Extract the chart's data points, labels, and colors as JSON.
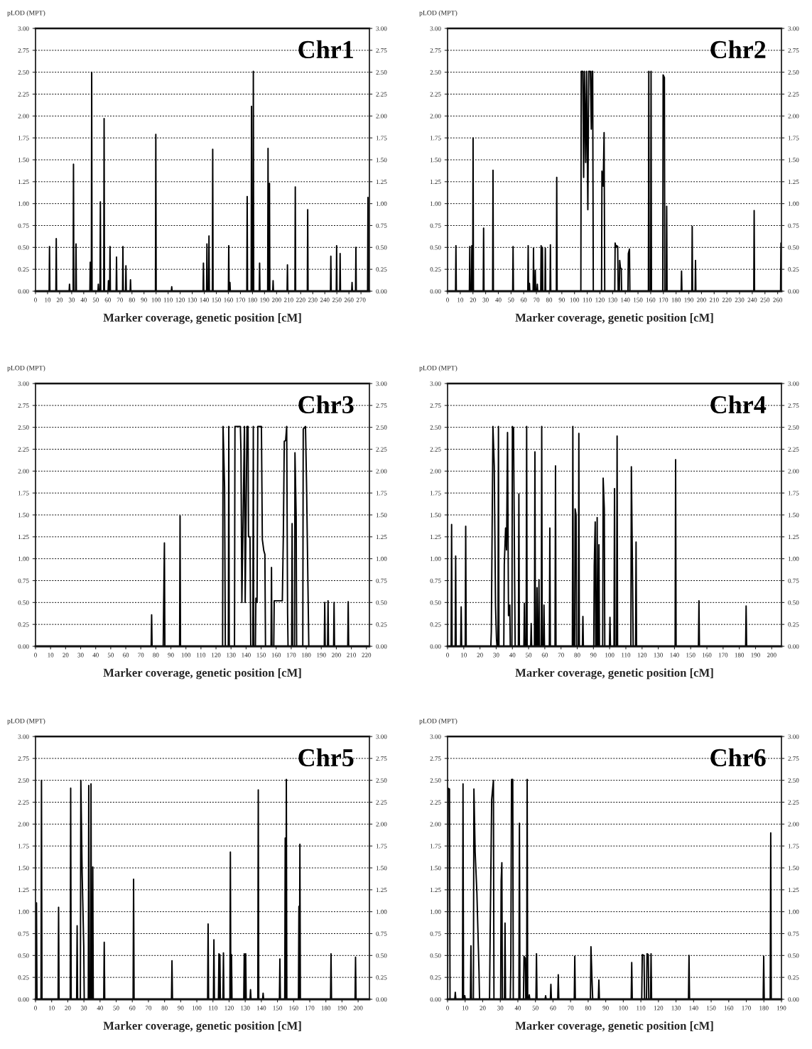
{
  "chart_data": [
    {
      "type": "line",
      "title": "Chr1",
      "ylabel": "pLOD (MPT)",
      "xlabel": "Marker coverage, genetic position [cM]",
      "grid": "y",
      "line_style": "solid",
      "xlim": [
        0,
        277
      ],
      "xticks": [
        0,
        10,
        20,
        30,
        40,
        50,
        60,
        70,
        80,
        90,
        100,
        110,
        120,
        130,
        140,
        150,
        160,
        170,
        180,
        190,
        200,
        210,
        220,
        230,
        240,
        250,
        260,
        270
      ],
      "ylim": [
        0,
        3
      ],
      "yticks": [
        {
          "value": 0,
          "label": "0.00"
        },
        {
          "value": 0.25,
          "label": "0.25"
        },
        {
          "value": 0.5,
          "label": "0.50"
        },
        {
          "value": 0.75,
          "label": "0.75"
        },
        {
          "value": 1,
          "label": "1.00"
        },
        {
          "value": 1.25,
          "label": "1.25"
        },
        {
          "value": 1.5,
          "label": "1.50"
        },
        {
          "value": 1.75,
          "label": "1.75"
        },
        {
          "value": 2,
          "label": "2.00"
        },
        {
          "value": 2.25,
          "label": "2.25"
        },
        {
          "value": 2.5,
          "label": "2.50"
        },
        {
          "value": 2.75,
          "label": "2.75"
        },
        {
          "value": 3,
          "label": "3.00"
        }
      ],
      "y2lim": [
        0,
        3
      ],
      "y2ticks": [
        {
          "value": 0,
          "label": "0.00"
        },
        {
          "value": 0.25,
          "label": "0.25"
        },
        {
          "value": 0.5,
          "label": "0.50"
        },
        {
          "value": 0.75,
          "label": "0.75"
        },
        {
          "value": 1,
          "label": "1.00"
        },
        {
          "value": 1.25,
          "label": "1.25"
        },
        {
          "value": 1.5,
          "label": "1.50"
        },
        {
          "value": 1.75,
          "label": "1.75"
        },
        {
          "value": 2,
          "label": "2.00"
        },
        {
          "value": 2.25,
          "label": "2.25"
        },
        {
          "value": 2.5,
          "label": "2.50"
        },
        {
          "value": 2.75,
          "label": "2.75"
        },
        {
          "value": 3,
          "label": "3.00"
        }
      ],
      "series": [
        {
          "color": "#000000",
          "x": [
            11.3,
            11.6,
            11.9,
            16.9,
            17.2,
            17.5,
            27.9,
            28.2,
            28.5,
            31.2,
            31.5,
            31.8,
            33.3,
            33.6,
            33.9,
            45.1,
            45.4,
            45.7,
            46.3,
            46.6,
            46.9,
            51.8,
            52.1,
            52.4,
            53.5,
            53.8,
            54.1,
            56.6,
            56.9,
            57.2,
            60.2,
            60.5,
            60.8,
            61.5,
            61.8,
            62.1,
            66.9,
            67.2,
            67.5,
            72.2,
            72.5,
            72.8,
            74.7,
            75,
            75.3,
            78.5,
            78.8,
            79.1,
            99.5,
            99.8,
            100.1,
            112.7,
            113,
            113.3,
            139,
            139.3,
            139.6,
            141.9,
            142.2,
            142.5,
            143.6,
            143.9,
            144.2,
            146.7,
            147,
            147.3,
            160,
            160.3,
            160.6,
            161,
            161.3,
            161.6,
            175.3,
            175.6,
            175.9,
            178.9,
            179.2,
            179.5,
            180.4,
            180.7,
            181,
            185.6,
            185.9,
            186.2,
            192.6,
            192.9,
            193.2,
            193.8,
            194.1,
            194.4,
            196.8,
            197.1,
            197.4,
            208.7,
            209,
            209.3,
            215.2,
            215.5,
            215.8,
            225.5,
            225.8,
            226.1,
            244.7,
            245,
            245.3,
            249.5,
            249.8,
            250.1,
            252.4,
            252.7,
            253,
            262.3,
            262.6,
            262.9,
            265.5,
            265.8,
            266.1,
            275.5,
            275.8,
            276.1
          ],
          "values": [
            0,
            0.51,
            0,
            0,
            0.6,
            0,
            0,
            0.08,
            0,
            0,
            1.45,
            0,
            0,
            0.54,
            0,
            0,
            0.33,
            0,
            0,
            2.5,
            0,
            0,
            0.08,
            0,
            0,
            1.02,
            0,
            0,
            1.97,
            0,
            0,
            0.12,
            0,
            0,
            0.51,
            0,
            0,
            0.39,
            0,
            0,
            0.51,
            0,
            0,
            0.29,
            0,
            0,
            0.13,
            0,
            0,
            1.79,
            0,
            0,
            0.05,
            0,
            0,
            0.32,
            0,
            0,
            0.54,
            0,
            0,
            0.63,
            0,
            0,
            1.62,
            0,
            0,
            0.52,
            0,
            0,
            0.1,
            0,
            0,
            1.08,
            0,
            0,
            2.11,
            0,
            0,
            2.51,
            0,
            0,
            0.32,
            0,
            0,
            1.63,
            0,
            0,
            1.23,
            0,
            0,
            0.12,
            0,
            0,
            0.3,
            0,
            0,
            1.19,
            0,
            0,
            0.93,
            0,
            0,
            0.4,
            0,
            0,
            0.52,
            0,
            0,
            0.43,
            0,
            0,
            0.1,
            0,
            0,
            0.5,
            0,
            0,
            1.07,
            0
          ]
        }
      ]
    },
    {
      "type": "line",
      "title": "Chr2",
      "ylabel": "pLOD (MPT)",
      "xlabel": "Marker coverage, genetic position [cM]",
      "grid": "y",
      "line_style": "solid",
      "xlim": [
        0,
        263
      ],
      "xticks": [
        0,
        10,
        20,
        30,
        40,
        50,
        60,
        70,
        80,
        90,
        100,
        110,
        120,
        130,
        140,
        150,
        160,
        170,
        180,
        190,
        200,
        210,
        220,
        230,
        240,
        250,
        260
      ],
      "ylim": [
        0,
        3
      ],
      "yticks": [
        {
          "value": 0,
          "label": "0.00"
        },
        {
          "value": 0.25,
          "label": "0.25"
        },
        {
          "value": 0.5,
          "label": "0.50"
        },
        {
          "value": 0.75,
          "label": "0.75"
        },
        {
          "value": 1,
          "label": "1.00"
        },
        {
          "value": 1.25,
          "label": "1.25"
        },
        {
          "value": 1.5,
          "label": "1.50"
        },
        {
          "value": 1.75,
          "label": "1.75"
        },
        {
          "value": 2,
          "label": "2.00"
        },
        {
          "value": 2.25,
          "label": "2.25"
        },
        {
          "value": 2.5,
          "label": "2.50"
        },
        {
          "value": 2.75,
          "label": "2.75"
        },
        {
          "value": 3,
          "label": "3.00"
        }
      ],
      "y2lim": [
        0,
        3
      ],
      "y2ticks": [
        {
          "value": 0,
          "label": "0.00"
        },
        {
          "value": 0.25,
          "label": "0.25"
        },
        {
          "value": 0.5,
          "label": "0.50"
        },
        {
          "value": 0.75,
          "label": "0.75"
        },
        {
          "value": 1,
          "label": "1.00"
        },
        {
          "value": 1.25,
          "label": "1.25"
        },
        {
          "value": 1.5,
          "label": "1.50"
        },
        {
          "value": 1.75,
          "label": "1.75"
        },
        {
          "value": 2,
          "label": "2.00"
        },
        {
          "value": 2.25,
          "label": "2.25"
        },
        {
          "value": 2.5,
          "label": "2.50"
        },
        {
          "value": 2.75,
          "label": "2.75"
        },
        {
          "value": 3,
          "label": "3.00"
        }
      ],
      "series": [
        {
          "color": "#000000",
          "x": [
            6.3,
            6.6,
            6.9,
            17.2,
            17.5,
            17.8,
            18.8,
            19.1,
            19.4,
            19.8,
            20.1,
            20.4,
            28.1,
            28.4,
            28.7,
            35.5,
            35.8,
            36.1,
            51.3,
            51.6,
            51.9,
            63.2,
            63.5,
            63.8,
            64.2,
            64.5,
            64.8,
            67.4,
            67.7,
            68,
            68.8,
            69.1,
            69.4,
            70.4,
            70.7,
            71,
            73.4,
            73.7,
            74,
            74.4,
            74.7,
            75,
            76.7,
            77,
            77.3,
            80.7,
            81,
            81.3,
            85.7,
            86,
            86.3,
            105,
            105.3,
            106.5,
            107.2,
            107.8,
            108.8,
            109.5,
            110.5,
            111.2,
            112.5,
            113.2,
            113.8,
            114.3,
            114.8,
            121.3,
            121.6,
            122.6,
            123.3,
            123.8,
            131.7,
            132,
            132.6,
            133.2,
            134,
            134.4,
            135.3,
            135.6,
            136.2,
            136.8,
            137.1,
            142.1,
            142.4,
            143.3,
            143.6,
            158.2,
            158.5,
            158.8,
            160,
            160.3,
            160.6,
            169.5,
            169.8,
            170.8,
            171.1,
            172.3,
            172.6,
            172.9,
            184,
            184.3,
            184.6,
            192.4,
            192.7,
            193,
            195,
            195.3,
            195.6,
            241.2,
            241.5,
            241.8,
            262.3,
            262.6,
            262.9
          ],
          "values": [
            0,
            0.52,
            0,
            0,
            0.51,
            0,
            0,
            0.52,
            0,
            0,
            1.75,
            0,
            0,
            0.72,
            0,
            0,
            1.38,
            0,
            0,
            0.51,
            0,
            0,
            0.52,
            0,
            0,
            0.09,
            0,
            0,
            0.49,
            0,
            0,
            0.24,
            0,
            0,
            0.08,
            0,
            0,
            0.52,
            0,
            0,
            0.5,
            0,
            0,
            0.49,
            0,
            0,
            0.53,
            0,
            0,
            1.3,
            0,
            0,
            2.51,
            2.51,
            1.3,
            2.51,
            1.47,
            2.51,
            0.93,
            2.51,
            2.51,
            1.85,
            2.51,
            2.51,
            0,
            0,
            1.37,
            1.2,
            1.81,
            0,
            0,
            0.55,
            0.5,
            0.52,
            0.51,
            0,
            0,
            0.35,
            0.26,
            0.26,
            0,
            0,
            0.43,
            0.48,
            0,
            0,
            2.51,
            0,
            0,
            2.51,
            0,
            0,
            2.47,
            2.44,
            0,
            0,
            0.97,
            0,
            0,
            0.23,
            0,
            0,
            0.74,
            0,
            0,
            0.35,
            0,
            0,
            0.92,
            0,
            0,
            0.55,
            0
          ]
        }
      ]
    },
    {
      "type": "line",
      "title": "Chr3",
      "ylabel": "pLOD (MPT)",
      "xlabel": "Marker coverage, genetic position [cM]",
      "grid": "y",
      "line_style": "solid",
      "xlim": [
        0,
        222
      ],
      "xticks": [
        0,
        10,
        20,
        30,
        40,
        50,
        60,
        70,
        80,
        90,
        100,
        110,
        120,
        130,
        140,
        150,
        160,
        170,
        180,
        190,
        200,
        210,
        220
      ],
      "ylim": [
        0,
        3
      ],
      "yticks": [
        {
          "value": 0,
          "label": "0.00"
        },
        {
          "value": 0.25,
          "label": "0.25"
        },
        {
          "value": 0.5,
          "label": "0.50"
        },
        {
          "value": 0.75,
          "label": "0.75"
        },
        {
          "value": 1,
          "label": "1.00"
        },
        {
          "value": 1.25,
          "label": "1.25"
        },
        {
          "value": 1.5,
          "label": "1.50"
        },
        {
          "value": 1.75,
          "label": "1.75"
        },
        {
          "value": 2,
          "label": "2.00"
        },
        {
          "value": 2.25,
          "label": "2.25"
        },
        {
          "value": 2.5,
          "label": "2.50"
        },
        {
          "value": 2.75,
          "label": "2.75"
        },
        {
          "value": 3,
          "label": "3.00"
        }
      ],
      "y2lim": [
        0,
        3
      ],
      "y2ticks": [
        {
          "value": 0,
          "label": "0.00"
        },
        {
          "value": 0.25,
          "label": "0.25"
        },
        {
          "value": 0.5,
          "label": "0.50"
        },
        {
          "value": 0.75,
          "label": "0.75"
        },
        {
          "value": 1,
          "label": "1.00"
        },
        {
          "value": 1.25,
          "label": "1.25"
        },
        {
          "value": 1.5,
          "label": "1.50"
        },
        {
          "value": 1.75,
          "label": "1.75"
        },
        {
          "value": 2,
          "label": "2.00"
        },
        {
          "value": 2.25,
          "label": "2.25"
        },
        {
          "value": 2.5,
          "label": "2.50"
        },
        {
          "value": 2.75,
          "label": "2.75"
        },
        {
          "value": 3,
          "label": "3.00"
        }
      ],
      "series": [
        {
          "color": "#000000",
          "x": [
            76.9,
            77.2,
            77.5,
            84.9,
            85.2,
            85.7,
            86,
            95.8,
            96.1,
            96.4,
            124.4,
            124.7,
            125.7,
            126.2,
            128.2,
            128.5,
            128.8,
            132.3,
            132.6,
            136.2,
            136.6,
            137.2,
            138.9,
            139.4,
            140.6,
            141.3,
            141.6,
            142.6,
            143.1,
            144.5,
            144.8,
            145.1,
            146.2,
            146.5,
            147.3,
            147.8,
            150.2,
            150.8,
            151.8,
            152.5,
            152.9,
            156.6,
            156.9,
            157.2,
            158.4,
            158.7,
            164.1,
            164.8,
            165.4,
            166.3,
            167,
            167.6,
            167.9,
            170.3,
            170.6,
            170.9,
            172.2,
            172.5,
            173.3,
            173.6,
            177.7,
            178,
            179.5,
            180.2,
            180.9,
            181.4,
            181.7,
            192,
            192.3,
            192.6,
            194.2,
            194.5,
            194.8,
            198.2,
            198.5,
            198.8,
            207.6,
            207.9,
            208.2
          ],
          "values": [
            0,
            0.36,
            0,
            0,
            0.47,
            1.18,
            0,
            0,
            1.49,
            0,
            0,
            2.51,
            1.82,
            0,
            0,
            2.51,
            0,
            0,
            2.51,
            2.51,
            2.22,
            0.5,
            2.51,
            0.5,
            2.51,
            2.51,
            1.25,
            1.25,
            0,
            0,
            2.51,
            0,
            0,
            0.55,
            0.5,
            2.51,
            2.51,
            1.22,
            1.09,
            1.05,
            0,
            0,
            0.9,
            0,
            0,
            0.52,
            0.52,
            1.3,
            2.34,
            2.35,
            2.51,
            0.37,
            0,
            0,
            1.4,
            0,
            0,
            2.21,
            1.49,
            0,
            0,
            2.48,
            2.51,
            1.85,
            0.99,
            0.37,
            0,
            0,
            0.5,
            0,
            0,
            0.52,
            0,
            0,
            0.5,
            0,
            0,
            0.51,
            0
          ]
        }
      ]
    },
    {
      "type": "line",
      "title": "Chr4",
      "ylabel": "pLOD (MPT)",
      "xlabel": "Marker coverage, genetic position [cM]",
      "grid": "y",
      "line_style": "solid",
      "xlim": [
        0,
        206
      ],
      "xticks": [
        0,
        10,
        20,
        30,
        40,
        50,
        60,
        70,
        80,
        90,
        100,
        110,
        120,
        130,
        140,
        150,
        160,
        170,
        180,
        190,
        200
      ],
      "ylim": [
        0,
        3
      ],
      "yticks": [
        {
          "value": 0,
          "label": "0.00"
        },
        {
          "value": 0.25,
          "label": "0.25"
        },
        {
          "value": 0.5,
          "label": "0.50"
        },
        {
          "value": 0.75,
          "label": "0.75"
        },
        {
          "value": 1,
          "label": "1.00"
        },
        {
          "value": 1.25,
          "label": "1.25"
        },
        {
          "value": 1.5,
          "label": "1.50"
        },
        {
          "value": 1.75,
          "label": "1.75"
        },
        {
          "value": 2,
          "label": "2.00"
        },
        {
          "value": 2.25,
          "label": "2.25"
        },
        {
          "value": 2.5,
          "label": "2.50"
        },
        {
          "value": 2.75,
          "label": "2.75"
        },
        {
          "value": 3,
          "label": "3.00"
        }
      ],
      "y2lim": [
        0,
        3
      ],
      "y2ticks": [
        {
          "value": 0,
          "label": "0.00"
        },
        {
          "value": 0.25,
          "label": "0.25"
        },
        {
          "value": 0.5,
          "label": "0.50"
        },
        {
          "value": 0.75,
          "label": "0.75"
        },
        {
          "value": 1,
          "label": "1.00"
        },
        {
          "value": 1.25,
          "label": "1.25"
        },
        {
          "value": 1.5,
          "label": "1.50"
        },
        {
          "value": 1.75,
          "label": "1.75"
        },
        {
          "value": 2,
          "label": "2.00"
        },
        {
          "value": 2.25,
          "label": "2.25"
        },
        {
          "value": 2.5,
          "label": "2.50"
        },
        {
          "value": 2.75,
          "label": "2.75"
        },
        {
          "value": 3,
          "label": "3.00"
        }
      ],
      "series": [
        {
          "color": "#000000",
          "x": [
            2.2,
            2.5,
            2.8,
            4.7,
            5,
            5.3,
            8.1,
            8.4,
            8.7,
            10.9,
            11.2,
            11.5,
            26.7,
            27,
            28,
            28.8,
            29.6,
            30.2,
            30.5,
            31.1,
            31.4,
            31.7,
            34.7,
            35,
            35.8,
            36.4,
            37,
            37.6,
            38.4,
            38.7,
            39.7,
            40,
            40.7,
            41.4,
            41.7,
            43.7,
            44,
            44.3,
            47.1,
            47.4,
            47.7,
            48.5,
            48.8,
            49.1,
            51.3,
            51.6,
            51.9,
            53.6,
            53.9,
            54.2,
            54.9,
            55.2,
            55.5,
            56.1,
            56.4,
            56.7,
            57.8,
            58.1,
            58.4,
            59.2,
            59.5,
            59.8,
            62.8,
            63.1,
            63.4,
            66.3,
            66.6,
            66.9,
            77,
            77.3,
            77.6,
            78.4,
            78.7,
            79.3,
            79.6,
            80.7,
            81,
            81.3,
            83.2,
            83.5,
            83.8,
            90.2,
            90.5,
            91.1,
            91.4,
            92,
            92.3,
            92.6,
            93.1,
            93.4,
            93.7,
            95.7,
            96,
            96.7,
            97,
            99.9,
            100.2,
            100.5,
            102.7,
            103,
            103.3,
            104.3,
            104.6,
            104.9,
            113.1,
            113.4,
            114.2,
            114.5,
            116,
            116.3,
            116.6,
            140.4,
            140.7,
            141,
            154.8,
            155.1,
            155.4,
            183.9,
            184.2,
            184.5
          ],
          "values": [
            0,
            1.39,
            0,
            0,
            1.03,
            0,
            0,
            0.45,
            0,
            0,
            1.37,
            0,
            0,
            0.17,
            2.51,
            2.06,
            0.46,
            0.08,
            0,
            0,
            2.51,
            0,
            0,
            0.93,
            1.35,
            1.1,
            2.44,
            0.35,
            0.47,
            0,
            0,
            2.51,
            2.49,
            0.72,
            0,
            0,
            1.74,
            0,
            0,
            0.49,
            0,
            0,
            2.51,
            0,
            0,
            0.26,
            0,
            0,
            2.22,
            0,
            0,
            0.67,
            0,
            0,
            0.76,
            0,
            0,
            2.51,
            0,
            0,
            0.47,
            0,
            0,
            1.35,
            0,
            0,
            2.06,
            0,
            0,
            2.51,
            0,
            0,
            1.57,
            1.5,
            0,
            0,
            2.43,
            0,
            0,
            0.34,
            0,
            0,
            0.92,
            1.42,
            0,
            0,
            1.47,
            0,
            0,
            1.16,
            0,
            0,
            1.92,
            1.57,
            0,
            0,
            0.33,
            0,
            0,
            1.8,
            0,
            0,
            2.4,
            0,
            0,
            2.05,
            0.67,
            0,
            0,
            1.19,
            0,
            0,
            2.13,
            0,
            0,
            0.52,
            0,
            0,
            0.46,
            0
          ]
        }
      ]
    },
    {
      "type": "line",
      "title": "Chr5",
      "ylabel": "pLOD (MPT)",
      "xlabel": "Marker coverage, genetic position [cM]",
      "grid": "y",
      "line_style": "solid",
      "xlim": [
        0,
        207
      ],
      "xticks": [
        0,
        10,
        20,
        30,
        40,
        50,
        60,
        70,
        80,
        90,
        100,
        110,
        120,
        130,
        140,
        150,
        160,
        170,
        180,
        190,
        200
      ],
      "ylim": [
        0,
        3
      ],
      "yticks": [
        {
          "value": 0,
          "label": "0.00"
        },
        {
          "value": 0.25,
          "label": "0.25"
        },
        {
          "value": 0.5,
          "label": "0.50"
        },
        {
          "value": 0.75,
          "label": "0.75"
        },
        {
          "value": 1,
          "label": "1.00"
        },
        {
          "value": 1.25,
          "label": "1.25"
        },
        {
          "value": 1.5,
          "label": "1.50"
        },
        {
          "value": 1.75,
          "label": "1.75"
        },
        {
          "value": 2,
          "label": "2.00"
        },
        {
          "value": 2.25,
          "label": "2.25"
        },
        {
          "value": 2.5,
          "label": "2.50"
        },
        {
          "value": 2.75,
          "label": "2.75"
        },
        {
          "value": 3,
          "label": "3.00"
        }
      ],
      "y2lim": [
        0,
        3
      ],
      "y2ticks": [
        {
          "value": 0,
          "label": "0.00"
        },
        {
          "value": 0.25,
          "label": "0.25"
        },
        {
          "value": 0.5,
          "label": "0.50"
        },
        {
          "value": 0.75,
          "label": "0.75"
        },
        {
          "value": 1,
          "label": "1.00"
        },
        {
          "value": 1.25,
          "label": "1.25"
        },
        {
          "value": 1.5,
          "label": "1.50"
        },
        {
          "value": 1.75,
          "label": "1.75"
        },
        {
          "value": 2,
          "label": "2.00"
        },
        {
          "value": 2.25,
          "label": "2.25"
        },
        {
          "value": 2.5,
          "label": "2.50"
        },
        {
          "value": 2.75,
          "label": "2.75"
        },
        {
          "value": 3,
          "label": "3.00"
        }
      ],
      "series": [
        {
          "color": "#000000",
          "x": [
            0.3,
            0.6,
            0.9,
            3.4,
            3.7,
            4,
            14,
            14.3,
            14.6,
            21.5,
            21.8,
            22.1,
            25.5,
            25.8,
            26.1,
            27.8,
            28.1,
            28.9,
            29.9,
            30.2,
            32.7,
            33,
            33.3,
            34.1,
            34.4,
            34.7,
            35.2,
            35.5,
            35.8,
            42.3,
            42.6,
            42.9,
            60.5,
            60.8,
            61.1,
            84.3,
            84.6,
            84.9,
            106.7,
            107,
            107.3,
            110.3,
            110.6,
            110.9,
            113.4,
            113.7,
            114,
            114,
            114.3,
            114.6,
            116.2,
            116.5,
            116.8,
            120.5,
            120.8,
            121.1,
            121.2,
            121.5,
            121.8,
            129.1,
            129.4,
            129.7,
            130,
            130.3,
            130.6,
            133,
            133.3,
            133.6,
            137.8,
            138.1,
            138.4,
            140.8,
            141.1,
            141.4,
            151.2,
            151.5,
            151.8,
            154.5,
            154.8,
            155.1,
            155.2,
            155.5,
            155.8,
            163,
            163.3,
            163.6,
            163.6,
            163.9,
            164.2,
            182.9,
            183.2,
            183.5,
            198.1,
            198.4,
            198.7
          ],
          "values": [
            0,
            1.1,
            0,
            0,
            2.5,
            0,
            0,
            1.05,
            0,
            0,
            2.41,
            0,
            0,
            0.84,
            0,
            0,
            2.5,
            1.44,
            0.61,
            0,
            0,
            2.44,
            0,
            0,
            2.46,
            0,
            0,
            1.51,
            0,
            0,
            0.65,
            0,
            0,
            1.37,
            0,
            0,
            0.44,
            0,
            0,
            0.86,
            0,
            0,
            0.68,
            0,
            0,
            0.52,
            0,
            0,
            0.51,
            0,
            0,
            0.53,
            0,
            0,
            1.68,
            0,
            0,
            0.51,
            0,
            0,
            0.52,
            0,
            0,
            0.52,
            0,
            0,
            0.11,
            0,
            0,
            2.39,
            0,
            0,
            0.07,
            0,
            0,
            0.46,
            0,
            0,
            1.84,
            0,
            0,
            2.51,
            0,
            0,
            1.06,
            0,
            0,
            1.77,
            0,
            0,
            0.52,
            0,
            0,
            0.48,
            0
          ]
        }
      ]
    },
    {
      "type": "line",
      "title": "Chr6",
      "ylabel": "pLOD (MPT)",
      "xlabel": "Marker coverage, genetic position [cM]",
      "grid": "y",
      "line_style": "solid",
      "xlim": [
        0,
        190
      ],
      "xticks": [
        0,
        10,
        20,
        30,
        40,
        50,
        60,
        70,
        80,
        90,
        100,
        110,
        120,
        130,
        140,
        150,
        160,
        170,
        180,
        190
      ],
      "ylim": [
        0,
        3
      ],
      "yticks": [
        {
          "value": 0,
          "label": "0.00"
        },
        {
          "value": 0.25,
          "label": "0.25"
        },
        {
          "value": 0.5,
          "label": "0.50"
        },
        {
          "value": 0.75,
          "label": "0.75"
        },
        {
          "value": 1,
          "label": "1.00"
        },
        {
          "value": 1.25,
          "label": "1.25"
        },
        {
          "value": 1.5,
          "label": "1.50"
        },
        {
          "value": 1.75,
          "label": "1.75"
        },
        {
          "value": 2,
          "label": "2.00"
        },
        {
          "value": 2.25,
          "label": "2.25"
        },
        {
          "value": 2.5,
          "label": "2.50"
        },
        {
          "value": 2.75,
          "label": "2.75"
        },
        {
          "value": 3,
          "label": "3.00"
        }
      ],
      "y2lim": [
        0,
        3
      ],
      "y2ticks": [
        {
          "value": 0,
          "label": "0.00"
        },
        {
          "value": 0.25,
          "label": "0.25"
        },
        {
          "value": 0.5,
          "label": "0.50"
        },
        {
          "value": 0.75,
          "label": "0.75"
        },
        {
          "value": 1,
          "label": "1.00"
        },
        {
          "value": 1.25,
          "label": "1.25"
        },
        {
          "value": 1.5,
          "label": "1.50"
        },
        {
          "value": 1.75,
          "label": "1.75"
        },
        {
          "value": 2,
          "label": "2.00"
        },
        {
          "value": 2.25,
          "label": "2.25"
        },
        {
          "value": 2.5,
          "label": "2.50"
        },
        {
          "value": 2.75,
          "label": "2.75"
        },
        {
          "value": 3,
          "label": "3.00"
        }
      ],
      "series": [
        {
          "color": "#000000",
          "x": [
            0,
            0.3,
            1.1,
            1.4,
            4.1,
            4.4,
            4.7,
            8.5,
            8.8,
            9.1,
            9.5,
            9.8,
            10.1,
            13,
            13.3,
            13.6,
            14.7,
            15,
            15.7,
            16.7,
            17.9,
            18.2,
            23.9,
            24.2,
            25.1,
            26.1,
            26.4,
            30.2,
            30.5,
            30.9,
            31.2,
            32.4,
            32.7,
            33,
            35.7,
            36,
            36.4,
            37.1,
            37.4,
            40.6,
            40.9,
            41.2,
            43.2,
            43.5,
            44.2,
            44.5,
            45,
            45.3,
            45.6,
            46.2,
            46.5,
            46.8,
            50.3,
            50.6,
            50.9,
            55.5,
            55.8,
            56.1,
            58.5,
            58.8,
            59.1,
            62.7,
            63,
            63.3,
            72.1,
            72.4,
            72.7,
            81.3,
            81.6,
            82.3,
            82.6,
            85.8,
            86.1,
            86.4,
            104.5,
            104.8,
            105.1,
            110.5,
            110.8,
            111.8,
            112.1,
            113.2,
            113.5,
            114.2,
            114.5,
            115.5,
            115.8,
            116.1,
            137.1,
            137.4,
            137.7,
            179.6,
            179.9,
            180.2,
            183.6,
            183.9,
            184.2
          ],
          "values": [
            0,
            2.41,
            2.4,
            0,
            0,
            0.08,
            0,
            0,
            2.46,
            0,
            0,
            0.04,
            0,
            0,
            0.61,
            0,
            0,
            2.4,
            1.68,
            1.21,
            0.31,
            0,
            0,
            0.67,
            2.28,
            2.5,
            0,
            0,
            1.35,
            1.56,
            0,
            0,
            0.87,
            0,
            0,
            0.4,
            2.51,
            2.51,
            0,
            0,
            2.01,
            0,
            0,
            0.49,
            0.47,
            0,
            0,
            2.51,
            0,
            0,
            0.05,
            0,
            0,
            0.52,
            0,
            0,
            0.04,
            0,
            0,
            0.17,
            0,
            0,
            0.28,
            0,
            0,
            0.49,
            0,
            0,
            0.6,
            0.16,
            0,
            0,
            0.22,
            0,
            0,
            0.42,
            0,
            0,
            0.51,
            0.5,
            0,
            0,
            0.52,
            0.51,
            0,
            0,
            0.52,
            0,
            0,
            0.5,
            0,
            0,
            0.49,
            0,
            0,
            1.9,
            0
          ]
        }
      ]
    }
  ]
}
